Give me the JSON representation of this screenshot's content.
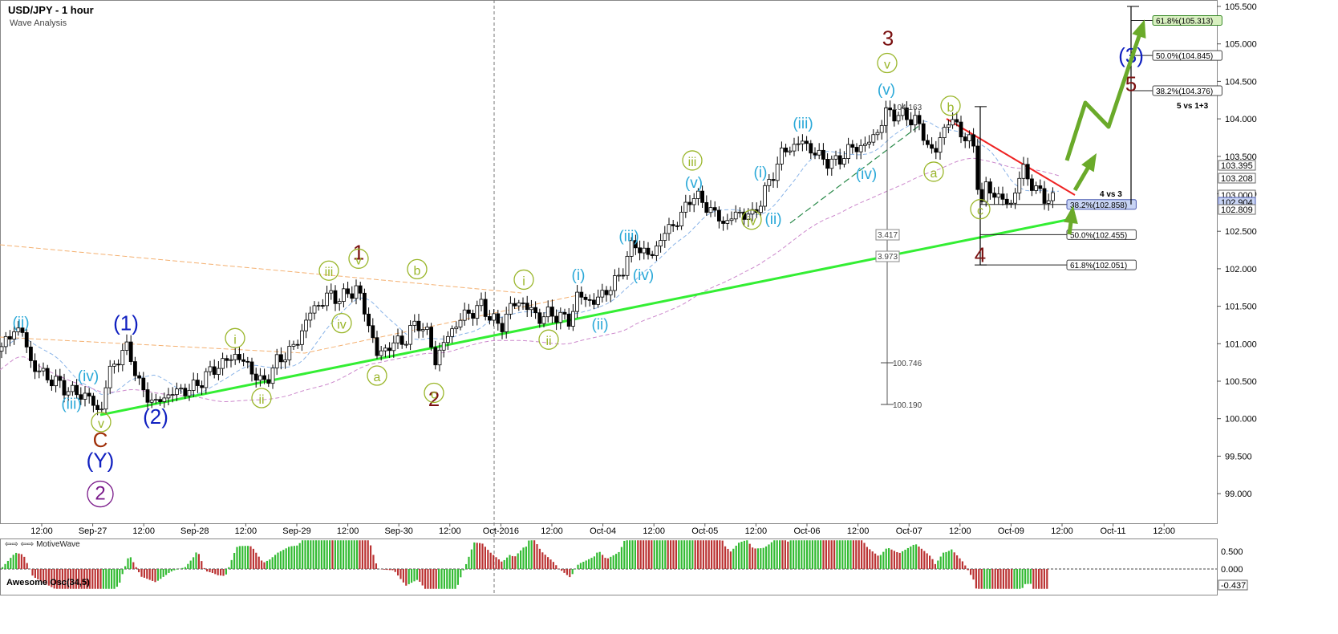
{
  "header": {
    "title": "USD/JPY - 1 hour",
    "subtitle": "Wave Analysis"
  },
  "footer": {
    "brand": "MotiveWave"
  },
  "oscillator": {
    "title": "Awesome Osc(34,5)",
    "ticks": [
      "0.500",
      "0.000"
    ],
    "current": "-0.437"
  },
  "chart_data": {
    "type": "candlestick",
    "symbol": "USD/JPY",
    "timeframe": "1 hour",
    "ylim": [
      98.8,
      105.55
    ],
    "price_ticks": [
      "105.500",
      "105.000",
      "104.500",
      "104.000",
      "103.500",
      "103.000",
      "102.500",
      "102.000",
      "101.500",
      "101.000",
      "100.500",
      "100.000",
      "99.500",
      "99.000"
    ],
    "time_ticks": [
      "12:00",
      "Sep-27",
      "12:00",
      "Sep-28",
      "12:00",
      "Sep-29",
      "12:00",
      "Sep-30",
      "12:00",
      "Oct-2016",
      "12:00",
      "Oct-04",
      "12:00",
      "Oct-05",
      "12:00",
      "Oct-06",
      "12:00",
      "Oct-07",
      "12:00",
      "Oct-09",
      "12:00",
      "Oct-11",
      "12:00"
    ],
    "price_markers": [
      {
        "text": "103.395",
        "value": 103.395,
        "style": "plain"
      },
      {
        "text": "103.208",
        "value": 103.208,
        "style": "plain"
      },
      {
        "text": "103.000",
        "value": 103.0,
        "style": "plain"
      },
      {
        "text": "102.904",
        "value": 102.904,
        "style": "current"
      },
      {
        "text": "102.809",
        "value": 102.809,
        "style": "plain"
      }
    ],
    "price_path": [
      [
        0,
        100.9
      ],
      [
        18,
        101.2
      ],
      [
        28,
        101.15
      ],
      [
        40,
        100.7
      ],
      [
        60,
        100.55
      ],
      [
        90,
        100.35
      ],
      [
        110,
        100.3
      ],
      [
        125,
        100.05
      ],
      [
        135,
        100.6
      ],
      [
        150,
        100.85
      ],
      [
        160,
        100.95
      ],
      [
        175,
        100.4
      ],
      [
        193,
        100.2
      ],
      [
        215,
        100.35
      ],
      [
        240,
        100.4
      ],
      [
        265,
        100.65
      ],
      [
        293,
        100.85
      ],
      [
        310,
        100.7
      ],
      [
        327,
        100.45
      ],
      [
        345,
        100.75
      ],
      [
        370,
        101.0
      ],
      [
        385,
        101.4
      ],
      [
        410,
        101.65
      ],
      [
        425,
        101.6
      ],
      [
        445,
        101.75
      ],
      [
        460,
        101.25
      ],
      [
        470,
        100.85
      ],
      [
        490,
        101.0
      ],
      [
        505,
        101.05
      ],
      [
        520,
        101.3
      ],
      [
        535,
        101.1
      ],
      [
        542,
        100.75
      ],
      [
        555,
        101.05
      ],
      [
        575,
        101.35
      ],
      [
        600,
        101.5
      ],
      [
        625,
        101.2
      ],
      [
        635,
        101.5
      ],
      [
        652,
        101.55
      ],
      [
        670,
        101.35
      ],
      [
        690,
        101.4
      ],
      [
        710,
        101.3
      ],
      [
        720,
        101.65
      ],
      [
        740,
        101.55
      ],
      [
        770,
        101.85
      ],
      [
        790,
        102.35
      ],
      [
        810,
        102.15
      ],
      [
        830,
        102.5
      ],
      [
        850,
        102.7
      ],
      [
        862,
        103.0
      ],
      [
        880,
        102.85
      ],
      [
        903,
        102.6
      ],
      [
        920,
        102.75
      ],
      [
        938,
        102.7
      ],
      [
        955,
        103.05
      ],
      [
        975,
        103.55
      ],
      [
        1000,
        103.7
      ],
      [
        1020,
        103.5
      ],
      [
        1040,
        103.4
      ],
      [
        1060,
        103.6
      ],
      [
        1080,
        103.65
      ],
      [
        1095,
        103.85
      ],
      [
        1105,
        104.1
      ],
      [
        1120,
        104.05
      ],
      [
        1140,
        104.0
      ],
      [
        1155,
        103.7
      ],
      [
        1165,
        103.5
      ],
      [
        1175,
        103.85
      ],
      [
        1185,
        104.0
      ],
      [
        1200,
        103.8
      ],
      [
        1215,
        103.6
      ],
      [
        1222,
        102.8
      ],
      [
        1230,
        103.1
      ],
      [
        1245,
        102.95
      ],
      [
        1260,
        102.85
      ],
      [
        1275,
        103.35
      ],
      [
        1290,
        103.05
      ],
      [
        1305,
        102.95
      ],
      [
        1315,
        102.9
      ]
    ],
    "fib_levels": [
      {
        "text": "61.8%(105.313)",
        "value": 105.313
      },
      {
        "text": "50.0%(104.845)",
        "value": 104.845
      },
      {
        "text": "38.2%(104.376)",
        "value": 104.376
      },
      {
        "text": "38.2%(102.858)",
        "value": 102.858
      },
      {
        "text": "50.0%(102.455)",
        "value": 102.455
      },
      {
        "text": "61.8%(102.051)",
        "value": 102.051
      }
    ],
    "notes": [
      {
        "text": "5 vs 1+3"
      },
      {
        "text": "4 vs 3"
      },
      {
        "text": "104.163"
      },
      {
        "text": "3.417"
      },
      {
        "text": "3.973"
      },
      {
        "text": "100.746"
      },
      {
        "text": "100.190"
      }
    ],
    "wave_labels": [
      {
        "text": "3",
        "kind": "big",
        "color": "#7a1010",
        "x": 1107,
        "v": 104.98
      },
      {
        "text": "1",
        "kind": "big",
        "color": "#7a1010",
        "x": 447,
        "v": 102.12
      },
      {
        "text": "2",
        "kind": "big",
        "color": "#7a1010",
        "x": 541,
        "v": 100.17
      },
      {
        "text": "4",
        "kind": "big",
        "color": "#7a1010",
        "x": 1222,
        "v": 102.09
      },
      {
        "text": "5",
        "kind": "big",
        "color": "#7a1010",
        "x": 1410,
        "v": 104.37
      },
      {
        "text": "C",
        "kind": "big",
        "color": "#a0300a",
        "x": 125,
        "v": 99.62
      },
      {
        "text": "(Y)",
        "kind": "big",
        "color": "#1020c0",
        "x": 125,
        "v": 99.35
      },
      {
        "text": "(1)",
        "kind": "big",
        "color": "#1020c0",
        "x": 157,
        "v": 101.18
      },
      {
        "text": "(2)",
        "kind": "big",
        "color": "#1020c0",
        "x": 194,
        "v": 99.93
      },
      {
        "text": "(3)",
        "kind": "big",
        "color": "#1020c0",
        "x": 1410,
        "v": 104.75
      },
      {
        "text": "2",
        "kind": "circle",
        "color": "#7a1a8a",
        "x": 125,
        "v": 98.92
      },
      {
        "text": "v",
        "kind": "circle",
        "color": "#9ab62a",
        "x": 1106,
        "v": 104.67
      },
      {
        "text": "iii",
        "kind": "circle",
        "color": "#9ab62a",
        "x": 863,
        "v": 103.37
      },
      {
        "text": "i",
        "kind": "circle",
        "color": "#9ab62a",
        "x": 293,
        "v": 101.0
      },
      {
        "text": "ii",
        "kind": "circle",
        "color": "#9ab62a",
        "x": 326,
        "v": 100.2
      },
      {
        "text": "iii",
        "kind": "circle",
        "color": "#9ab62a",
        "x": 410,
        "v": 101.9
      },
      {
        "text": "iv",
        "kind": "circle",
        "color": "#9ab62a",
        "x": 426,
        "v": 101.2
      },
      {
        "text": "v",
        "kind": "circle",
        "color": "#9ab62a",
        "x": 447,
        "v": 102.06
      },
      {
        "text": "a",
        "kind": "circle",
        "color": "#9ab62a",
        "x": 470,
        "v": 100.5
      },
      {
        "text": "b",
        "kind": "circle",
        "color": "#9ab62a",
        "x": 520,
        "v": 101.92
      },
      {
        "text": "c",
        "kind": "circle",
        "color": "#9ab62a",
        "x": 541,
        "v": 100.27
      },
      {
        "text": "i",
        "kind": "circle",
        "color": "#9ab62a",
        "x": 653,
        "v": 101.78
      },
      {
        "text": "ii",
        "kind": "circle",
        "color": "#9ab62a",
        "x": 684,
        "v": 100.98
      },
      {
        "text": "iv",
        "kind": "circle",
        "color": "#9ab62a",
        "x": 937,
        "v": 102.58
      },
      {
        "text": "v",
        "kind": "circle",
        "color": "#9ab62a",
        "x": 126,
        "v": 99.88
      },
      {
        "text": "a",
        "kind": "circle",
        "color": "#9ab62a",
        "x": 1164,
        "v": 103.22
      },
      {
        "text": "b",
        "kind": "circle",
        "color": "#9ab62a",
        "x": 1185,
        "v": 104.1
      },
      {
        "text": "c",
        "kind": "circle",
        "color": "#9ab62a",
        "x": 1222,
        "v": 102.72
      },
      {
        "text": "(ii)",
        "kind": "cyan",
        "color": "#29a8d8",
        "x": 26,
        "v": 101.22
      },
      {
        "text": "(iv)",
        "kind": "cyan",
        "color": "#29a8d8",
        "x": 110,
        "v": 100.5
      },
      {
        "text": "(iii)",
        "kind": "cyan",
        "color": "#29a8d8",
        "x": 89,
        "v": 100.13
      },
      {
        "text": "(i)",
        "kind": "cyan",
        "color": "#29a8d8",
        "x": 721,
        "v": 101.85
      },
      {
        "text": "(ii)",
        "kind": "cyan",
        "color": "#29a8d8",
        "x": 748,
        "v": 101.19
      },
      {
        "text": "(iii)",
        "kind": "cyan",
        "color": "#29a8d8",
        "x": 784,
        "v": 102.37
      },
      {
        "text": "(iv)",
        "kind": "cyan",
        "color": "#29a8d8",
        "x": 802,
        "v": 101.85
      },
      {
        "text": "(v)",
        "kind": "cyan",
        "color": "#29a8d8",
        "x": 865,
        "v": 103.08
      },
      {
        "text": "(i)",
        "kind": "cyan",
        "color": "#29a8d8",
        "x": 948,
        "v": 103.22
      },
      {
        "text": "(ii)",
        "kind": "cyan",
        "color": "#29a8d8",
        "x": 964,
        "v": 102.6
      },
      {
        "text": "(iii)",
        "kind": "cyan",
        "color": "#29a8d8",
        "x": 1001,
        "v": 103.87
      },
      {
        "text": "(iv)",
        "kind": "cyan",
        "color": "#29a8d8",
        "x": 1080,
        "v": 103.2
      },
      {
        "text": "(v)",
        "kind": "cyan",
        "color": "#29a8d8",
        "x": 1105,
        "v": 104.32
      }
    ],
    "colors": {
      "uptrend": "#33ee33",
      "resistance": "#ee2222",
      "projection": "#6aaa2a",
      "osc_up": "#33bb33",
      "osc_down": "#bb3333"
    }
  }
}
